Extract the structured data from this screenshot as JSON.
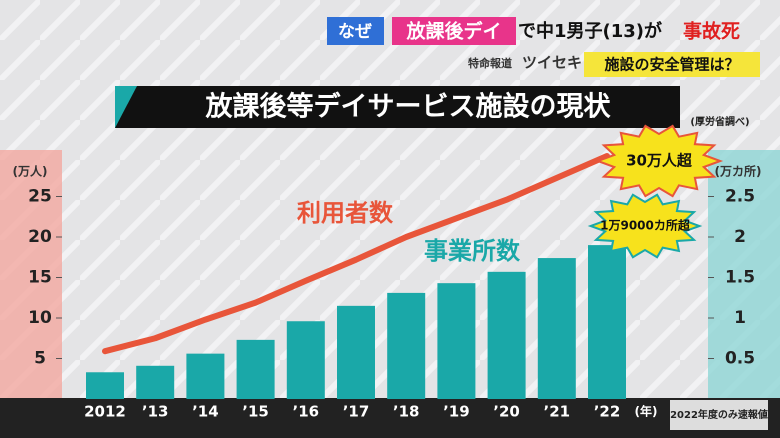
{
  "header": {
    "tag": "なぜ",
    "headline_highlight": "放課後デイ",
    "headline_mid": "で中1男子(13)が",
    "headline_end": "事故死",
    "program_small": "特命報道",
    "program": "ツイセキ",
    "question": "施設の安全管理は？"
  },
  "chart_data": {
    "type": "combo",
    "title": "放課後等デイサービス施設の現状",
    "source": "(厚労省調べ)",
    "y_label": "(万人)",
    "y2_label": "(万カ所)",
    "x_unit": "(年)",
    "note": "2022年度のみ速報値",
    "categories": [
      "2012",
      "’13",
      "’14",
      "’15",
      "’16",
      "’17",
      "’18",
      "’19",
      "’20",
      "’21",
      "’22"
    ],
    "series": [
      {
        "name": "事業所数",
        "type": "bar",
        "axis": "y2",
        "color": "#1aa8a8",
        "values": [
          0.33,
          0.41,
          0.56,
          0.73,
          0.96,
          1.15,
          1.31,
          1.43,
          1.57,
          1.74,
          1.9
        ]
      },
      {
        "name": "利用者数",
        "type": "line",
        "axis": "y",
        "color": "#e8553a",
        "values": [
          5.9,
          7.5,
          9.8,
          11.9,
          14.6,
          17.2,
          20,
          22.3,
          24.6,
          27.3,
          30
        ]
      }
    ],
    "annotations": [
      "30万人超",
      "1万9000カ所超"
    ],
    "ylim": [
      0,
      30
    ],
    "yticks": [
      5,
      10,
      15,
      20,
      25
    ],
    "y2lim": [
      0,
      3
    ],
    "y2ticks": [
      0.5,
      1,
      1.5,
      2,
      2.5
    ]
  }
}
